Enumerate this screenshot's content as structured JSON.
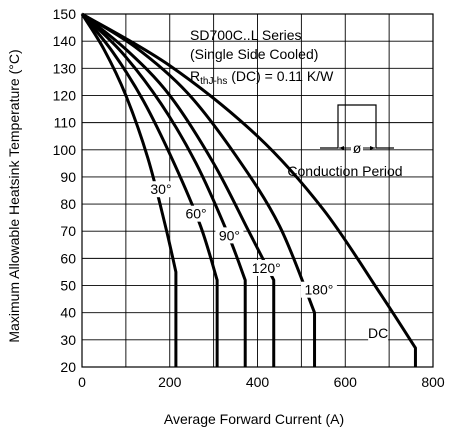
{
  "chart_data": {
    "type": "line",
    "title_lines": [
      "SD700C..L Series",
      "(Single Side Cooled)"
    ],
    "rth": {
      "main": "R",
      "sub": "thJ-hs",
      "rest": " (DC) = 0.11 K/W"
    },
    "inset_label": "Conduction Period",
    "inset_symbol": "ø",
    "xlabel": "Average Forward Current (A)",
    "ylabel": "Maximum Allowable Heatsink Temperature (°C)",
    "xlim": [
      0,
      800
    ],
    "ylim": [
      20,
      150
    ],
    "xticks": [
      0,
      200,
      400,
      600,
      800
    ],
    "yticks": [
      20,
      30,
      40,
      50,
      60,
      70,
      80,
      90,
      100,
      110,
      120,
      130,
      140,
      150
    ],
    "grid": true,
    "series": [
      {
        "name": "30°",
        "points": [
          [
            0,
            150
          ],
          [
            50,
            137
          ],
          [
            100,
            120
          ],
          [
            150,
            97
          ],
          [
            190,
            72
          ],
          [
            214,
            55
          ],
          [
            214,
            20
          ]
        ]
      },
      {
        "name": "60°",
        "points": [
          [
            0,
            150
          ],
          [
            70,
            136
          ],
          [
            140,
            118
          ],
          [
            210,
            95
          ],
          [
            270,
            72
          ],
          [
            308,
            52
          ],
          [
            308,
            20
          ]
        ]
      },
      {
        "name": "90°",
        "points": [
          [
            0,
            150
          ],
          [
            90,
            136
          ],
          [
            180,
            117
          ],
          [
            260,
            95
          ],
          [
            330,
            70
          ],
          [
            372,
            52
          ],
          [
            372,
            20
          ]
        ]
      },
      {
        "name": "120°",
        "points": [
          [
            0,
            150
          ],
          [
            100,
            137
          ],
          [
            200,
            120
          ],
          [
            300,
            95
          ],
          [
            380,
            70
          ],
          [
            437,
            52
          ],
          [
            437,
            20
          ]
        ]
      },
      {
        "name": "180°",
        "points": [
          [
            0,
            150
          ],
          [
            120,
            138
          ],
          [
            240,
            121
          ],
          [
            350,
            98
          ],
          [
            450,
            72
          ],
          [
            530,
            40
          ],
          [
            530,
            20
          ]
        ]
      },
      {
        "name": "DC",
        "points": [
          [
            0,
            150
          ],
          [
            200,
            131
          ],
          [
            400,
            105
          ],
          [
            550,
            78
          ],
          [
            680,
            47
          ],
          [
            760,
            27
          ],
          [
            760,
            20
          ]
        ]
      }
    ],
    "labels": [
      {
        "text": "30°",
        "x": 180,
        "y": 84
      },
      {
        "text": "60°",
        "x": 260,
        "y": 75
      },
      {
        "text": "90°",
        "x": 336,
        "y": 67
      },
      {
        "text": "120°",
        "x": 420,
        "y": 55
      },
      {
        "text": "180°",
        "x": 540,
        "y": 47
      },
      {
        "text": "DC",
        "x": 675,
        "y": 31
      }
    ]
  }
}
